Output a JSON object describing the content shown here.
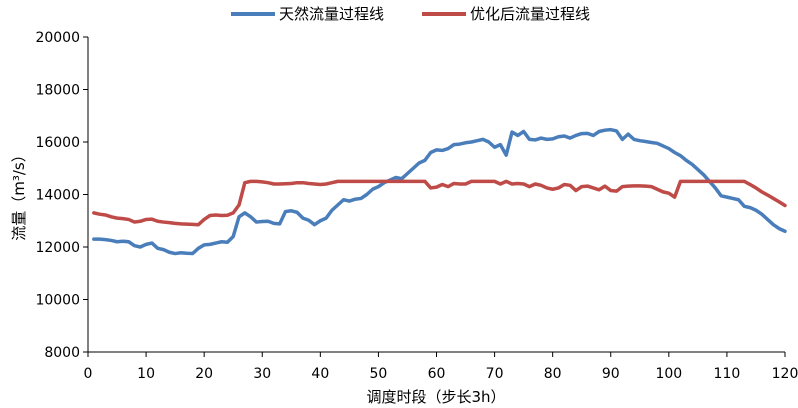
{
  "chart_data": {
    "type": "line",
    "legend": {
      "position": "top",
      "entries": [
        "天然流量过程线",
        "优化后流量过程线"
      ]
    },
    "xlabel": "调度时段（步长3h）",
    "ylabel": "流量（m³/s）",
    "xlim": [
      0,
      120
    ],
    "ylim": [
      8000,
      20000
    ],
    "x_ticks": [
      "0",
      "10",
      "20",
      "30",
      "40",
      "50",
      "60",
      "70",
      "80",
      "90",
      "100",
      "110",
      "120"
    ],
    "y_ticks": [
      "8000",
      "10000",
      "12000",
      "14000",
      "16000",
      "18000",
      "20000"
    ],
    "grid": false,
    "series": [
      {
        "name": "天然流量过程线",
        "color": "#4a7ebb",
        "x": [
          1,
          2,
          3,
          4,
          5,
          6,
          7,
          8,
          9,
          10,
          11,
          12,
          13,
          14,
          15,
          16,
          17,
          18,
          19,
          20,
          21,
          22,
          23,
          24,
          25,
          26,
          27,
          28,
          29,
          30,
          31,
          32,
          33,
          34,
          35,
          36,
          37,
          38,
          39,
          40,
          41,
          42,
          43,
          44,
          45,
          46,
          47,
          48,
          49,
          50,
          51,
          52,
          53,
          54,
          55,
          56,
          57,
          58,
          59,
          60,
          61,
          62,
          63,
          64,
          65,
          66,
          67,
          68,
          69,
          70,
          71,
          72,
          73,
          74,
          75,
          76,
          77,
          78,
          79,
          80,
          81,
          82,
          83,
          84,
          85,
          86,
          87,
          88,
          89,
          90,
          91,
          92,
          93,
          94,
          95,
          96,
          97,
          98,
          99,
          100,
          101,
          102,
          103,
          104,
          105,
          106,
          107,
          108,
          109,
          110,
          111,
          112,
          113,
          114,
          115,
          116,
          117,
          118,
          119,
          120
        ],
        "values": [
          12300,
          12300,
          12280,
          12250,
          12200,
          12220,
          12200,
          12050,
          12000,
          12100,
          12150,
          11950,
          11900,
          11800,
          11750,
          11780,
          11760,
          11750,
          11950,
          12080,
          12100,
          12150,
          12200,
          12180,
          12400,
          13150,
          13300,
          13150,
          12950,
          12970,
          12980,
          12900,
          12880,
          13350,
          13380,
          13320,
          13100,
          13020,
          12850,
          13000,
          13100,
          13400,
          13600,
          13800,
          13750,
          13820,
          13850,
          14000,
          14200,
          14300,
          14450,
          14550,
          14650,
          14600,
          14800,
          15000,
          15200,
          15300,
          15600,
          15700,
          15680,
          15750,
          15900,
          15920,
          15970,
          16000,
          16050,
          16100,
          16000,
          15800,
          15900,
          15500,
          16380,
          16250,
          16400,
          16100,
          16080,
          16150,
          16100,
          16120,
          16200,
          16230,
          16150,
          16250,
          16320,
          16330,
          16250,
          16400,
          16450,
          16470,
          16420,
          16100,
          16300,
          16100,
          16050,
          16020,
          15980,
          15950,
          15850,
          15750,
          15600,
          15480,
          15300,
          15150,
          14950,
          14750,
          14500,
          14250,
          13950,
          13900,
          13850,
          13800,
          13550,
          13500,
          13400,
          13250,
          13050,
          12850,
          12700,
          12600
        ]
      },
      {
        "name": "优化后流量过程线",
        "color": "#be4b48",
        "x": [
          1,
          2,
          3,
          4,
          5,
          6,
          7,
          8,
          9,
          10,
          11,
          12,
          13,
          14,
          15,
          16,
          17,
          18,
          19,
          20,
          21,
          22,
          23,
          24,
          25,
          26,
          27,
          28,
          29,
          30,
          31,
          32,
          33,
          34,
          35,
          36,
          37,
          38,
          39,
          40,
          41,
          42,
          43,
          44,
          45,
          46,
          47,
          48,
          49,
          50,
          51,
          52,
          53,
          54,
          55,
          56,
          57,
          58,
          59,
          60,
          61,
          62,
          63,
          64,
          65,
          66,
          67,
          68,
          69,
          70,
          71,
          72,
          73,
          74,
          75,
          76,
          77,
          78,
          79,
          80,
          81,
          82,
          83,
          84,
          85,
          86,
          87,
          88,
          89,
          90,
          91,
          92,
          93,
          94,
          95,
          96,
          97,
          98,
          99,
          100,
          101,
          102,
          103,
          104,
          105,
          106,
          107,
          108,
          109,
          110,
          111,
          112,
          113,
          114,
          115,
          116,
          117,
          118,
          119,
          120
        ],
        "values": [
          13300,
          13250,
          13220,
          13150,
          13100,
          13080,
          13050,
          12950,
          12980,
          13050,
          13060,
          12980,
          12950,
          12930,
          12900,
          12880,
          12870,
          12860,
          12850,
          13050,
          13200,
          13220,
          13200,
          13210,
          13300,
          13600,
          14450,
          14500,
          14500,
          14480,
          14450,
          14400,
          14400,
          14410,
          14420,
          14450,
          14450,
          14420,
          14400,
          14380,
          14400,
          14450,
          14500,
          14500,
          14500,
          14500,
          14500,
          14500,
          14500,
          14500,
          14500,
          14500,
          14500,
          14500,
          14500,
          14500,
          14500,
          14500,
          14250,
          14280,
          14380,
          14300,
          14420,
          14400,
          14400,
          14500,
          14500,
          14500,
          14500,
          14500,
          14400,
          14500,
          14400,
          14420,
          14400,
          14300,
          14400,
          14350,
          14250,
          14200,
          14250,
          14380,
          14350,
          14150,
          14300,
          14320,
          14250,
          14180,
          14320,
          14150,
          14130,
          14300,
          14320,
          14330,
          14330,
          14320,
          14300,
          14200,
          14100,
          14050,
          13900,
          14500,
          14500,
          14500,
          14500,
          14500,
          14500,
          14500,
          14500,
          14500,
          14500,
          14500,
          14500,
          14380,
          14250,
          14100,
          13980,
          13850,
          13720,
          13580
        ]
      }
    ]
  }
}
